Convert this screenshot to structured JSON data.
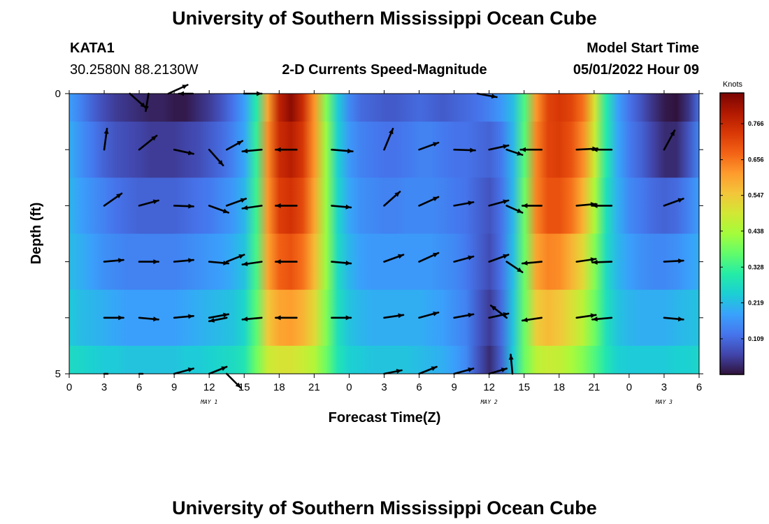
{
  "chart_data": {
    "type": "heatmap",
    "title": "University of Southern Mississippi Ocean Cube",
    "title_repeat": "University of Southern Mississippi Ocean Cube",
    "station": "KATA1",
    "coords": "30.2580N  88.2130W",
    "subtitle": "2-D Currents Speed-Magnitude",
    "model_start_label": "Model Start Time",
    "model_start_value": "05/01/2022 Hour 09",
    "xlabel": "Forecast Time(Z)",
    "ylabel": "Depth (ft)",
    "x_ticks": [
      "0",
      "3",
      "6",
      "9",
      "12",
      "15",
      "18",
      "21",
      "0",
      "3",
      "6",
      "9",
      "12",
      "15",
      "18",
      "21",
      "0",
      "3",
      "6"
    ],
    "y_ticks": [
      "0",
      "5"
    ],
    "y_range": [
      0,
      5
    ],
    "day_labels": [
      {
        "text": "MAY 1",
        "hour": 12
      },
      {
        "text": "MAY 2",
        "hour": 36
      },
      {
        "text": "MAY 3",
        "hour": 51
      }
    ],
    "colorbar": {
      "unit": "Knots",
      "ticks": [
        "0.766",
        "0.656",
        "0.547",
        "0.438",
        "0.328",
        "0.219",
        "0.109"
      ],
      "tick_values": [
        0.766,
        0.656,
        0.547,
        0.438,
        0.328,
        0.219,
        0.109
      ],
      "min": 0.0,
      "max": 0.86,
      "stops": [
        "#30123b",
        "#4145ab",
        "#4675ed",
        "#39a2fc",
        "#1bcfd4",
        "#24eca6",
        "#61fc6c",
        "#a4fc3b",
        "#d1e834",
        "#f3c63a",
        "#fe9b2d",
        "#f36315",
        "#d93806",
        "#b11901",
        "#7a0403"
      ]
    },
    "time_hours": [
      0,
      1,
      2,
      3,
      4,
      5,
      6,
      7,
      8,
      9,
      10,
      11,
      12,
      13,
      14,
      15,
      16,
      17,
      18,
      19,
      20,
      21,
      22,
      23,
      24,
      25,
      26,
      27,
      28,
      29,
      30,
      31,
      32,
      33,
      34,
      35,
      36,
      37,
      38,
      39,
      40,
      41,
      42,
      43,
      44,
      45,
      46,
      47,
      48,
      49,
      50,
      51,
      52,
      53,
      54
    ],
    "depth_levels_ft": [
      0,
      1,
      2,
      3,
      4,
      5
    ],
    "speed_knots": [
      [
        0.18,
        0.14,
        0.1,
        0.07,
        0.05,
        0.04,
        0.03,
        0.02,
        0.02,
        0.01,
        0.01,
        0.03,
        0.05,
        0.08,
        0.12,
        0.18,
        0.3,
        0.6,
        0.78,
        0.84,
        0.76,
        0.62,
        0.4,
        0.24,
        0.15,
        0.11,
        0.1,
        0.09,
        0.09,
        0.1,
        0.11,
        0.1,
        0.09,
        0.1,
        0.11,
        0.12,
        0.14,
        0.17,
        0.22,
        0.35,
        0.62,
        0.72,
        0.74,
        0.72,
        0.66,
        0.5,
        0.3,
        0.18,
        0.12,
        0.08,
        0.04,
        0.01,
        0.0,
        0.04,
        0.12
      ],
      [
        0.2,
        0.16,
        0.13,
        0.1,
        0.08,
        0.07,
        0.06,
        0.05,
        0.05,
        0.05,
        0.06,
        0.07,
        0.09,
        0.11,
        0.14,
        0.19,
        0.32,
        0.63,
        0.76,
        0.79,
        0.74,
        0.62,
        0.42,
        0.25,
        0.17,
        0.14,
        0.13,
        0.12,
        0.12,
        0.13,
        0.14,
        0.14,
        0.13,
        0.12,
        0.12,
        0.11,
        0.1,
        0.13,
        0.21,
        0.36,
        0.64,
        0.72,
        0.73,
        0.7,
        0.63,
        0.48,
        0.3,
        0.19,
        0.13,
        0.1,
        0.06,
        0.03,
        0.03,
        0.08,
        0.15
      ],
      [
        0.21,
        0.18,
        0.16,
        0.14,
        0.12,
        0.11,
        0.1,
        0.1,
        0.1,
        0.1,
        0.11,
        0.12,
        0.13,
        0.15,
        0.17,
        0.21,
        0.33,
        0.62,
        0.73,
        0.75,
        0.71,
        0.6,
        0.42,
        0.26,
        0.19,
        0.16,
        0.15,
        0.14,
        0.14,
        0.15,
        0.15,
        0.15,
        0.14,
        0.13,
        0.12,
        0.1,
        0.08,
        0.12,
        0.21,
        0.38,
        0.64,
        0.7,
        0.7,
        0.66,
        0.58,
        0.44,
        0.28,
        0.2,
        0.15,
        0.13,
        0.11,
        0.1,
        0.11,
        0.14,
        0.18
      ],
      [
        0.22,
        0.2,
        0.18,
        0.16,
        0.15,
        0.14,
        0.14,
        0.14,
        0.14,
        0.14,
        0.15,
        0.16,
        0.17,
        0.18,
        0.2,
        0.23,
        0.34,
        0.6,
        0.68,
        0.7,
        0.66,
        0.57,
        0.42,
        0.27,
        0.21,
        0.18,
        0.17,
        0.17,
        0.17,
        0.17,
        0.17,
        0.17,
        0.16,
        0.15,
        0.13,
        0.1,
        0.07,
        0.12,
        0.22,
        0.38,
        0.6,
        0.64,
        0.63,
        0.58,
        0.52,
        0.4,
        0.27,
        0.21,
        0.18,
        0.16,
        0.15,
        0.15,
        0.16,
        0.18,
        0.2
      ],
      [
        0.24,
        0.22,
        0.21,
        0.2,
        0.19,
        0.18,
        0.18,
        0.18,
        0.18,
        0.18,
        0.19,
        0.2,
        0.21,
        0.22,
        0.23,
        0.26,
        0.36,
        0.55,
        0.6,
        0.61,
        0.58,
        0.52,
        0.4,
        0.28,
        0.23,
        0.21,
        0.2,
        0.2,
        0.2,
        0.2,
        0.2,
        0.19,
        0.18,
        0.16,
        0.14,
        0.09,
        0.05,
        0.11,
        0.23,
        0.38,
        0.54,
        0.57,
        0.55,
        0.51,
        0.46,
        0.38,
        0.28,
        0.23,
        0.21,
        0.2,
        0.2,
        0.2,
        0.21,
        0.22,
        0.23
      ],
      [
        0.27,
        0.26,
        0.25,
        0.24,
        0.24,
        0.23,
        0.23,
        0.23,
        0.23,
        0.23,
        0.24,
        0.24,
        0.25,
        0.26,
        0.27,
        0.29,
        0.38,
        0.48,
        0.5,
        0.5,
        0.48,
        0.45,
        0.38,
        0.29,
        0.25,
        0.24,
        0.23,
        0.23,
        0.23,
        0.23,
        0.22,
        0.21,
        0.2,
        0.18,
        0.15,
        0.08,
        0.03,
        0.1,
        0.24,
        0.38,
        0.46,
        0.48,
        0.47,
        0.44,
        0.4,
        0.35,
        0.29,
        0.25,
        0.24,
        0.24,
        0.24,
        0.24,
        0.25,
        0.25,
        0.26
      ]
    ],
    "vectors": [
      {
        "hour": 5.2,
        "depth": 0,
        "u": 0.45,
        "v": -0.4
      },
      {
        "hour": 6.8,
        "depth": 0,
        "u": -0.08,
        "v": -0.5
      },
      {
        "hour": 8.5,
        "depth": 0,
        "u": 0.55,
        "v": 0.25
      },
      {
        "hour": 10.6,
        "depth": 0,
        "u": -0.4,
        "v": 0.0
      },
      {
        "hour": 15.0,
        "depth": 0,
        "u": 0.5,
        "v": 0.0
      },
      {
        "hour": 35.0,
        "depth": 0,
        "u": 0.55,
        "v": -0.1
      },
      {
        "hour": 3.0,
        "depth": 1,
        "u": 0.08,
        "v": 0.6
      },
      {
        "hour": 6.0,
        "depth": 1,
        "u": 0.5,
        "v": 0.4
      },
      {
        "hour": 9.0,
        "depth": 1,
        "u": 0.55,
        "v": -0.12
      },
      {
        "hour": 12.0,
        "depth": 1,
        "u": 0.4,
        "v": -0.45
      },
      {
        "hour": 13.5,
        "depth": 1,
        "u": 0.45,
        "v": 0.25
      },
      {
        "hour": 16.5,
        "depth": 1,
        "u": -0.55,
        "v": -0.05
      },
      {
        "hour": 19.5,
        "depth": 1,
        "u": -0.6,
        "v": 0.0
      },
      {
        "hour": 22.5,
        "depth": 1,
        "u": 0.6,
        "v": -0.05
      },
      {
        "hour": 27.0,
        "depth": 1,
        "u": 0.25,
        "v": 0.6
      },
      {
        "hour": 30.0,
        "depth": 1,
        "u": 0.55,
        "v": 0.2
      },
      {
        "hour": 33.0,
        "depth": 1,
        "u": 0.6,
        "v": -0.02
      },
      {
        "hour": 36.0,
        "depth": 1,
        "u": 0.55,
        "v": 0.12
      },
      {
        "hour": 37.5,
        "depth": 1,
        "u": 0.45,
        "v": -0.15
      },
      {
        "hour": 40.5,
        "depth": 1,
        "u": -0.6,
        "v": 0.0
      },
      {
        "hour": 43.5,
        "depth": 1,
        "u": 0.6,
        "v": 0.03
      },
      {
        "hour": 46.5,
        "depth": 1,
        "u": -0.55,
        "v": 0.0
      },
      {
        "hour": 51.0,
        "depth": 1,
        "u": 0.3,
        "v": 0.55
      },
      {
        "hour": 3.0,
        "depth": 2,
        "u": 0.5,
        "v": 0.35
      },
      {
        "hour": 6.0,
        "depth": 2,
        "u": 0.55,
        "v": 0.15
      },
      {
        "hour": 9.0,
        "depth": 2,
        "u": 0.55,
        "v": -0.02
      },
      {
        "hour": 12.0,
        "depth": 2,
        "u": 0.55,
        "v": -0.2
      },
      {
        "hour": 13.5,
        "depth": 2,
        "u": 0.55,
        "v": 0.2
      },
      {
        "hour": 16.5,
        "depth": 2,
        "u": -0.55,
        "v": -0.08
      },
      {
        "hour": 19.5,
        "depth": 2,
        "u": -0.6,
        "v": 0.0
      },
      {
        "hour": 22.5,
        "depth": 2,
        "u": 0.55,
        "v": -0.05
      },
      {
        "hour": 27.0,
        "depth": 2,
        "u": 0.45,
        "v": 0.4
      },
      {
        "hour": 30.0,
        "depth": 2,
        "u": 0.55,
        "v": 0.25
      },
      {
        "hour": 33.0,
        "depth": 2,
        "u": 0.55,
        "v": 0.1
      },
      {
        "hour": 36.0,
        "depth": 2,
        "u": 0.55,
        "v": 0.15
      },
      {
        "hour": 37.5,
        "depth": 2,
        "u": 0.45,
        "v": -0.2
      },
      {
        "hour": 40.5,
        "depth": 2,
        "u": -0.55,
        "v": 0.0
      },
      {
        "hour": 43.5,
        "depth": 2,
        "u": 0.55,
        "v": 0.05
      },
      {
        "hour": 46.5,
        "depth": 2,
        "u": -0.55,
        "v": 0.0
      },
      {
        "hour": 51.0,
        "depth": 2,
        "u": 0.55,
        "v": 0.2
      },
      {
        "hour": 3.0,
        "depth": 3,
        "u": 0.55,
        "v": 0.05
      },
      {
        "hour": 6.0,
        "depth": 3,
        "u": 0.55,
        "v": 0.0
      },
      {
        "hour": 9.0,
        "depth": 3,
        "u": 0.55,
        "v": 0.05
      },
      {
        "hour": 12.0,
        "depth": 3,
        "u": 0.55,
        "v": -0.05
      },
      {
        "hour": 13.5,
        "depth": 3,
        "u": 0.5,
        "v": 0.2
      },
      {
        "hour": 16.5,
        "depth": 3,
        "u": -0.55,
        "v": -0.08
      },
      {
        "hour": 19.5,
        "depth": 3,
        "u": -0.6,
        "v": 0.0
      },
      {
        "hour": 22.5,
        "depth": 3,
        "u": 0.55,
        "v": -0.05
      },
      {
        "hour": 27.0,
        "depth": 3,
        "u": 0.55,
        "v": 0.2
      },
      {
        "hour": 30.0,
        "depth": 3,
        "u": 0.55,
        "v": 0.25
      },
      {
        "hour": 33.0,
        "depth": 3,
        "u": 0.55,
        "v": 0.15
      },
      {
        "hour": 36.0,
        "depth": 3,
        "u": 0.55,
        "v": 0.2
      },
      {
        "hour": 37.5,
        "depth": 3,
        "u": 0.45,
        "v": -0.3
      },
      {
        "hour": 40.5,
        "depth": 3,
        "u": -0.55,
        "v": -0.05
      },
      {
        "hour": 43.5,
        "depth": 3,
        "u": 0.55,
        "v": 0.08
      },
      {
        "hour": 46.5,
        "depth": 3,
        "u": -0.55,
        "v": -0.02
      },
      {
        "hour": 51.0,
        "depth": 3,
        "u": 0.55,
        "v": 0.03
      },
      {
        "hour": 3.0,
        "depth": 4,
        "u": 0.55,
        "v": 0.0
      },
      {
        "hour": 6.0,
        "depth": 4,
        "u": 0.55,
        "v": -0.05
      },
      {
        "hour": 9.0,
        "depth": 4,
        "u": 0.55,
        "v": 0.05
      },
      {
        "hour": 12.0,
        "depth": 4,
        "u": 0.55,
        "v": 0.1
      },
      {
        "hour": 13.5,
        "depth": 4,
        "u": -0.5,
        "v": -0.1
      },
      {
        "hour": 16.5,
        "depth": 4,
        "u": -0.55,
        "v": -0.05
      },
      {
        "hour": 19.5,
        "depth": 4,
        "u": -0.6,
        "v": 0.0
      },
      {
        "hour": 22.5,
        "depth": 4,
        "u": 0.55,
        "v": 0.0
      },
      {
        "hour": 27.0,
        "depth": 4,
        "u": 0.55,
        "v": 0.08
      },
      {
        "hour": 30.0,
        "depth": 4,
        "u": 0.55,
        "v": 0.15
      },
      {
        "hour": 33.0,
        "depth": 4,
        "u": 0.55,
        "v": 0.1
      },
      {
        "hour": 36.0,
        "depth": 4,
        "u": 0.55,
        "v": 0.12
      },
      {
        "hour": 37.5,
        "depth": 4,
        "u": -0.45,
        "v": 0.35
      },
      {
        "hour": 40.5,
        "depth": 4,
        "u": -0.55,
        "v": -0.08
      },
      {
        "hour": 43.5,
        "depth": 4,
        "u": 0.55,
        "v": 0.08
      },
      {
        "hour": 46.5,
        "depth": 4,
        "u": -0.55,
        "v": -0.05
      },
      {
        "hour": 51.0,
        "depth": 4,
        "u": 0.55,
        "v": -0.05
      },
      {
        "hour": 3.0,
        "depth": 5,
        "u": 0.1,
        "v": 0.0
      },
      {
        "hour": 6.0,
        "depth": 5,
        "u": 0.1,
        "v": 0.0
      },
      {
        "hour": 9.0,
        "depth": 5,
        "u": 0.55,
        "v": 0.15
      },
      {
        "hour": 12.0,
        "depth": 5,
        "u": 0.5,
        "v": 0.2
      },
      {
        "hour": 13.5,
        "depth": 5,
        "u": 0.4,
        "v": -0.4
      },
      {
        "hour": 27.0,
        "depth": 5,
        "u": 0.5,
        "v": 0.1
      },
      {
        "hour": 30.0,
        "depth": 5,
        "u": 0.5,
        "v": 0.2
      },
      {
        "hour": 33.0,
        "depth": 5,
        "u": 0.55,
        "v": 0.15
      },
      {
        "hour": 36.0,
        "depth": 5,
        "u": 0.5,
        "v": 0.15
      },
      {
        "hour": 38.0,
        "depth": 5,
        "u": -0.05,
        "v": 0.55
      }
    ]
  }
}
